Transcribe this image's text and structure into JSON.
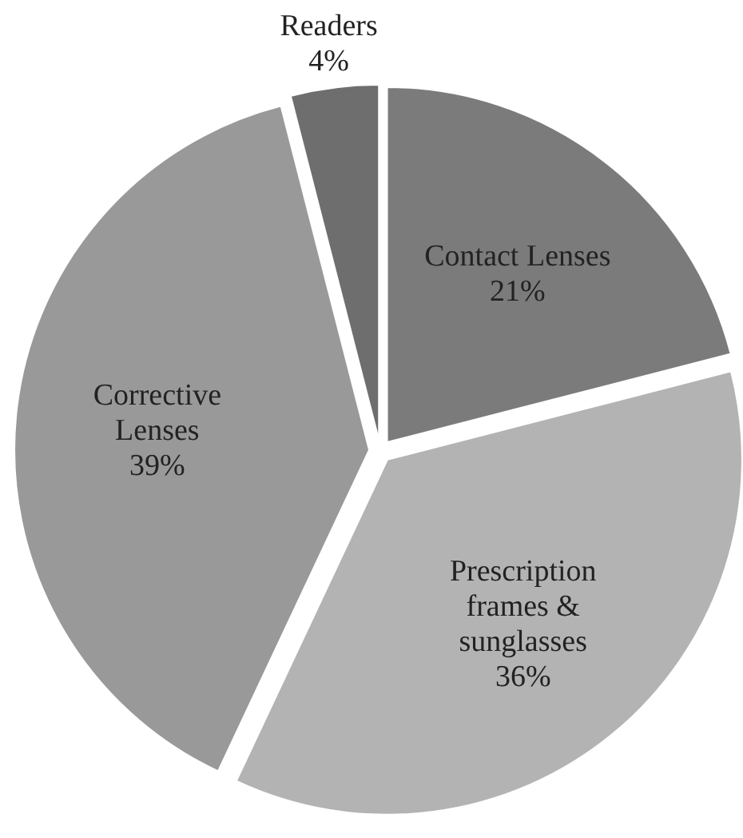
{
  "chart_data": {
    "type": "pie",
    "categories": [
      "Contact Lenses",
      "Prescription\nframes &\nsunglasses",
      "Corrective\nLenses",
      "Readers"
    ],
    "values": [
      21,
      36,
      39,
      4
    ],
    "colors": [
      "#7b7b7b",
      "#b3b3b3",
      "#999999",
      "#6e6e6e"
    ],
    "value_labels": [
      "21%",
      "36%",
      "39%",
      "4%"
    ]
  }
}
